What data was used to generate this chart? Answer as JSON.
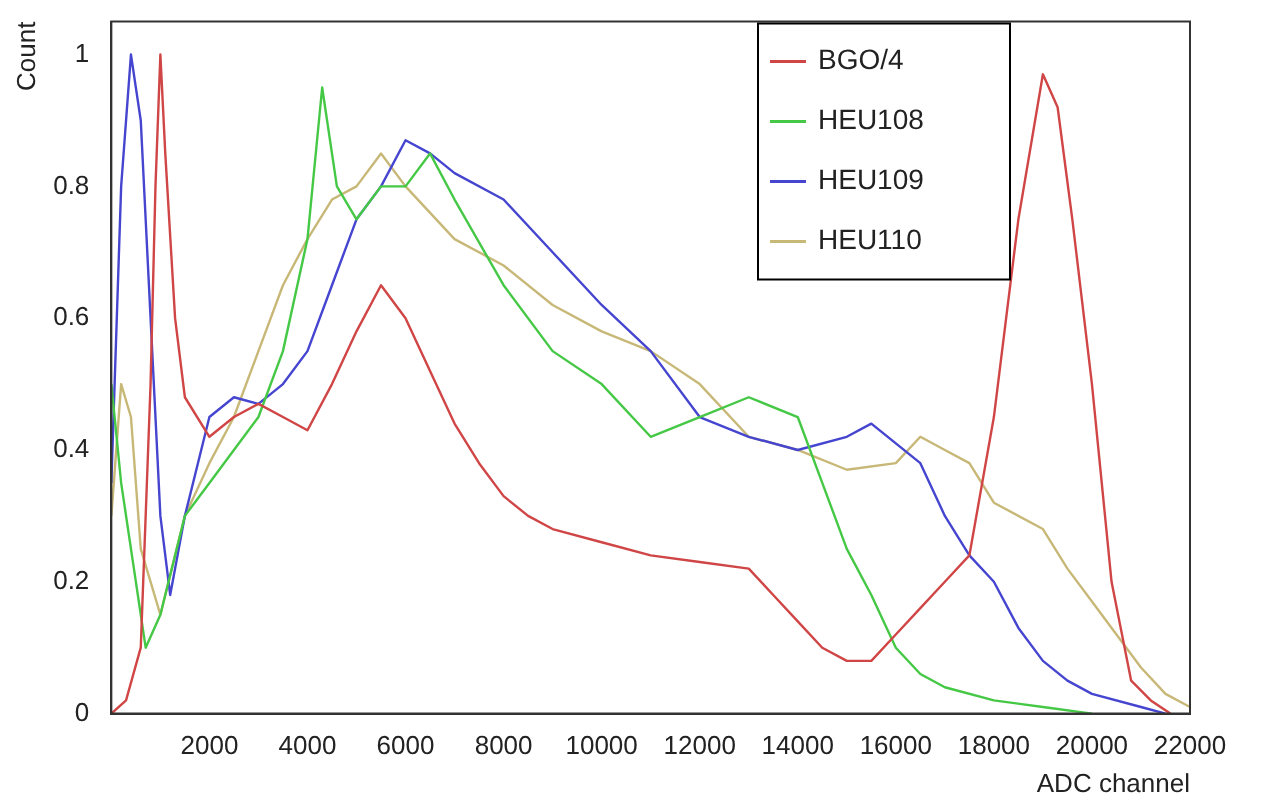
{
  "chart_data": {
    "type": "line",
    "xlabel": "ADC channel",
    "ylabel": "Count",
    "xlim": [
      0,
      22000
    ],
    "ylim": [
      0,
      1.05
    ],
    "xticks": [
      2000,
      4000,
      6000,
      8000,
      10000,
      12000,
      14000,
      16000,
      18000,
      20000,
      22000
    ],
    "yticks": [
      0,
      0.2,
      0.4,
      0.6,
      0.8,
      1
    ],
    "grid": false,
    "legend": "top right",
    "marker": "none",
    "line_style": "solid",
    "series": [
      {
        "name": "BGO/4",
        "color": "#d04545",
        "x": [
          0,
          300,
          600,
          800,
          900,
          1000,
          1100,
          1300,
          1500,
          2000,
          2500,
          3000,
          3500,
          4000,
          4500,
          5000,
          5500,
          6000,
          6500,
          7000,
          7500,
          8000,
          8500,
          9000,
          10000,
          11000,
          12000,
          13000,
          13500,
          14000,
          14500,
          15000,
          15500,
          16000,
          16500,
          17000,
          17500,
          18000,
          18500,
          19000,
          19300,
          19600,
          20000,
          20400,
          20800,
          21200,
          21600
        ],
        "values": [
          0,
          0.02,
          0.1,
          0.5,
          0.8,
          1.0,
          0.85,
          0.6,
          0.48,
          0.42,
          0.45,
          0.47,
          0.45,
          0.43,
          0.5,
          0.58,
          0.65,
          0.6,
          0.52,
          0.44,
          0.38,
          0.33,
          0.3,
          0.28,
          0.26,
          0.24,
          0.23,
          0.22,
          0.18,
          0.14,
          0.1,
          0.08,
          0.08,
          0.12,
          0.16,
          0.2,
          0.24,
          0.45,
          0.75,
          0.97,
          0.92,
          0.75,
          0.5,
          0.2,
          0.05,
          0.02,
          0
        ]
      },
      {
        "name": "HEU108",
        "color": "#45c845",
        "x": [
          0,
          200,
          700,
          1000,
          1500,
          2000,
          2500,
          3000,
          3500,
          4000,
          4300,
          4600,
          5000,
          5500,
          6000,
          6500,
          7000,
          8000,
          9000,
          10000,
          11000,
          12000,
          13000,
          14000,
          14500,
          15000,
          15500,
          16000,
          16500,
          17000,
          18000,
          19000,
          20000
        ],
        "values": [
          0.5,
          0.35,
          0.1,
          0.15,
          0.3,
          0.35,
          0.4,
          0.45,
          0.55,
          0.72,
          0.95,
          0.8,
          0.75,
          0.8,
          0.8,
          0.85,
          0.78,
          0.65,
          0.55,
          0.5,
          0.42,
          0.45,
          0.48,
          0.45,
          0.35,
          0.25,
          0.18,
          0.1,
          0.06,
          0.04,
          0.02,
          0.01,
          0
        ]
      },
      {
        "name": "HEU109",
        "color": "#4545d0",
        "x": [
          0,
          200,
          400,
          600,
          800,
          1000,
          1200,
          1500,
          2000,
          2500,
          3000,
          3500,
          4000,
          4500,
          5000,
          5500,
          6000,
          6500,
          7000,
          8000,
          9000,
          10000,
          11000,
          12000,
          13000,
          14000,
          15000,
          15500,
          16000,
          16500,
          17000,
          17500,
          18000,
          18500,
          19000,
          19500,
          20000,
          21000,
          21500
        ],
        "values": [
          0.35,
          0.8,
          1.0,
          0.9,
          0.6,
          0.3,
          0.18,
          0.3,
          0.45,
          0.48,
          0.47,
          0.5,
          0.55,
          0.65,
          0.75,
          0.8,
          0.87,
          0.85,
          0.82,
          0.78,
          0.7,
          0.62,
          0.55,
          0.45,
          0.42,
          0.4,
          0.42,
          0.44,
          0.41,
          0.38,
          0.3,
          0.24,
          0.2,
          0.13,
          0.08,
          0.05,
          0.03,
          0.01,
          0
        ]
      },
      {
        "name": "HEU110",
        "color": "#c8b878",
        "x": [
          0,
          200,
          400,
          600,
          1000,
          1500,
          2000,
          2500,
          3000,
          3500,
          4000,
          4500,
          5000,
          5500,
          6000,
          7000,
          8000,
          9000,
          10000,
          11000,
          12000,
          13000,
          14000,
          15000,
          16000,
          16500,
          17000,
          17500,
          18000,
          19000,
          19500,
          20000,
          20500,
          21000,
          21500,
          22000
        ],
        "values": [
          0.3,
          0.5,
          0.45,
          0.25,
          0.15,
          0.3,
          0.38,
          0.45,
          0.55,
          0.65,
          0.72,
          0.78,
          0.8,
          0.85,
          0.8,
          0.72,
          0.68,
          0.62,
          0.58,
          0.55,
          0.5,
          0.42,
          0.4,
          0.37,
          0.38,
          0.42,
          0.4,
          0.38,
          0.32,
          0.28,
          0.22,
          0.17,
          0.12,
          0.07,
          0.03,
          0.01
        ]
      }
    ]
  }
}
